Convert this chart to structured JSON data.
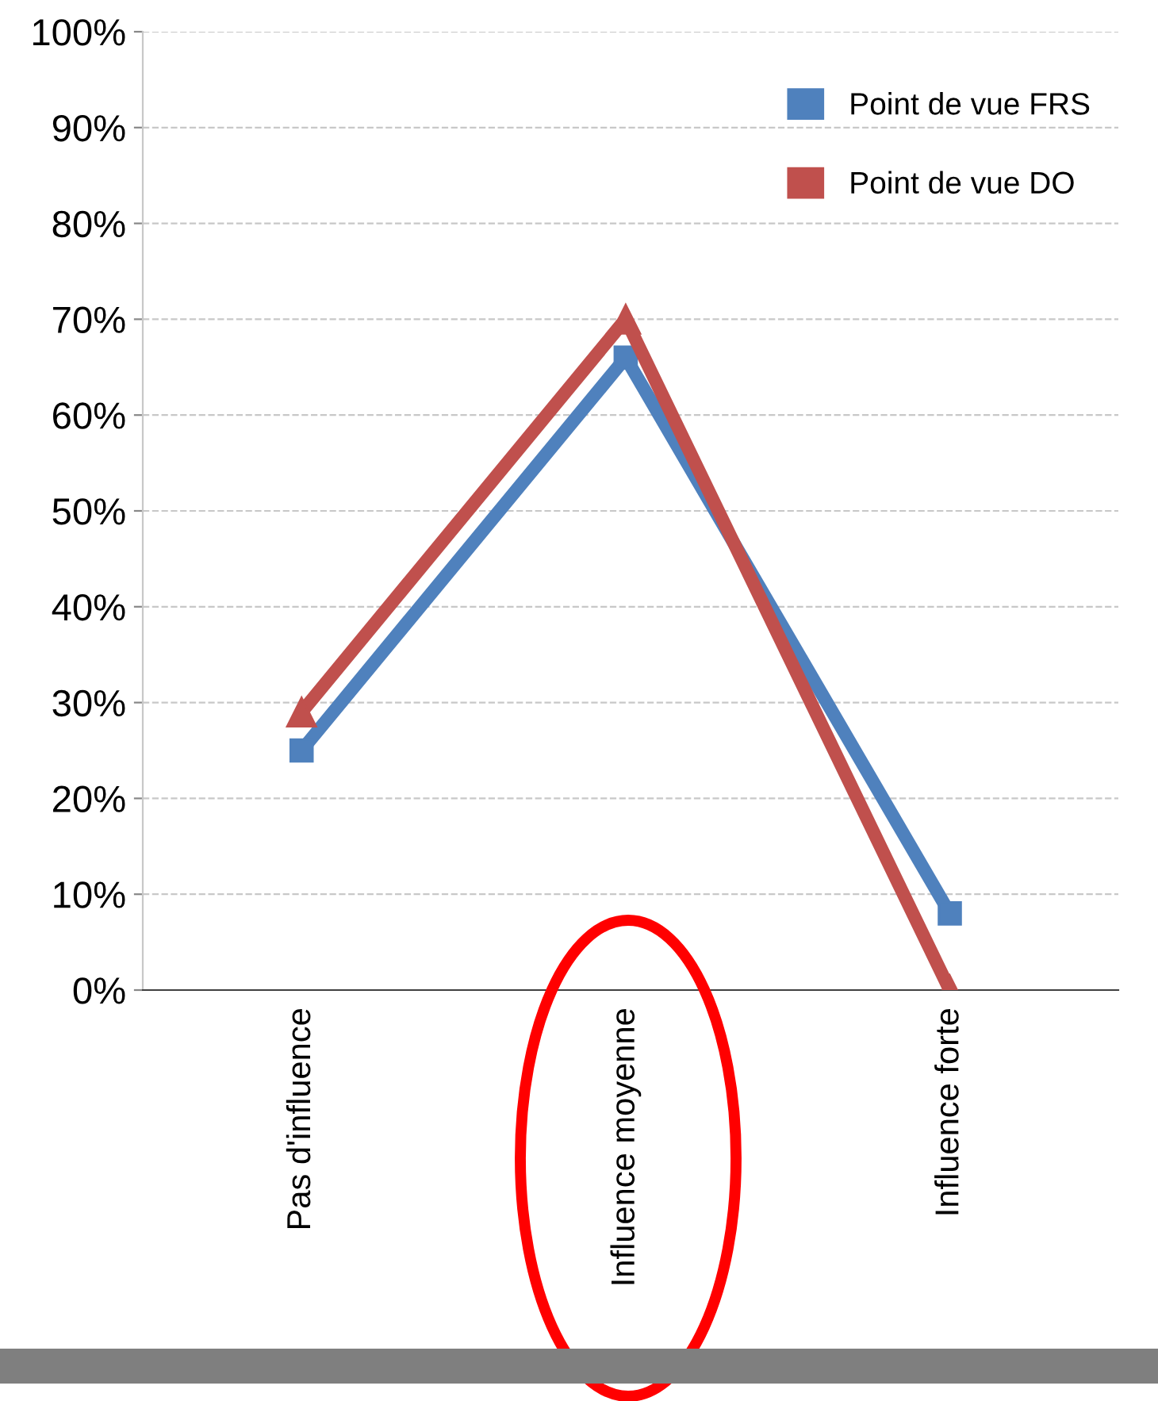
{
  "chart_data": {
    "type": "line",
    "categories": [
      "Pas d'influence",
      "Influence moyenne",
      "Influence forte"
    ],
    "series": [
      {
        "name": "Point de vue FRS",
        "color": "#4f81bd",
        "marker": "square",
        "values": [
          25,
          66,
          8
        ]
      },
      {
        "name": "Point de vue DO",
        "color": "#c0504d",
        "marker": "triangle",
        "values": [
          29,
          70,
          0
        ]
      }
    ],
    "ylim": [
      0,
      100
    ],
    "yticks": [
      {
        "value": 0,
        "label": "0%"
      },
      {
        "value": 10,
        "label": "10%"
      },
      {
        "value": 20,
        "label": "20%"
      },
      {
        "value": 30,
        "label": "30%"
      },
      {
        "value": 40,
        "label": "40%"
      },
      {
        "value": 50,
        "label": "50%"
      },
      {
        "value": 60,
        "label": "60%"
      },
      {
        "value": 70,
        "label": "70%"
      },
      {
        "value": 80,
        "label": "80%"
      },
      {
        "value": 90,
        "label": "90%"
      },
      {
        "value": 100,
        "label": "100%"
      }
    ],
    "grid": "y",
    "legend": "top right",
    "line_style": "solid"
  }
}
